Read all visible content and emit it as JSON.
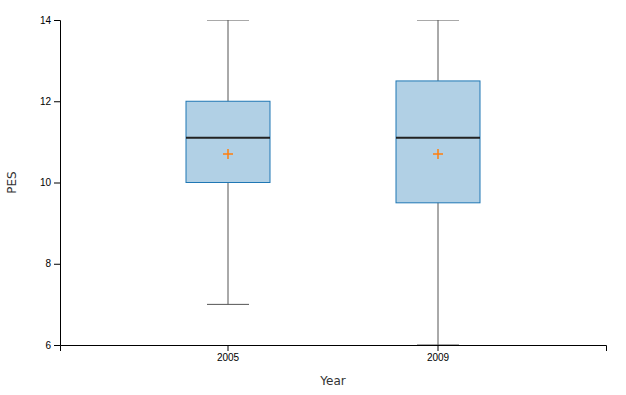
{
  "chart_data": {
    "type": "box",
    "xlabel": "Year",
    "ylabel": "PES",
    "categories": [
      "2005",
      "2009"
    ],
    "whisker_low": [
      7.0,
      6.0
    ],
    "q1": [
      10.0,
      9.5
    ],
    "median": [
      11.1,
      11.1
    ],
    "q3": [
      12.0,
      12.5
    ],
    "whisker_high": [
      14.0,
      14.0
    ],
    "mean": [
      10.7,
      10.7
    ],
    "ylim": [
      6,
      14
    ],
    "yticks": [
      6,
      8,
      10,
      12,
      14
    ],
    "grid": false
  }
}
